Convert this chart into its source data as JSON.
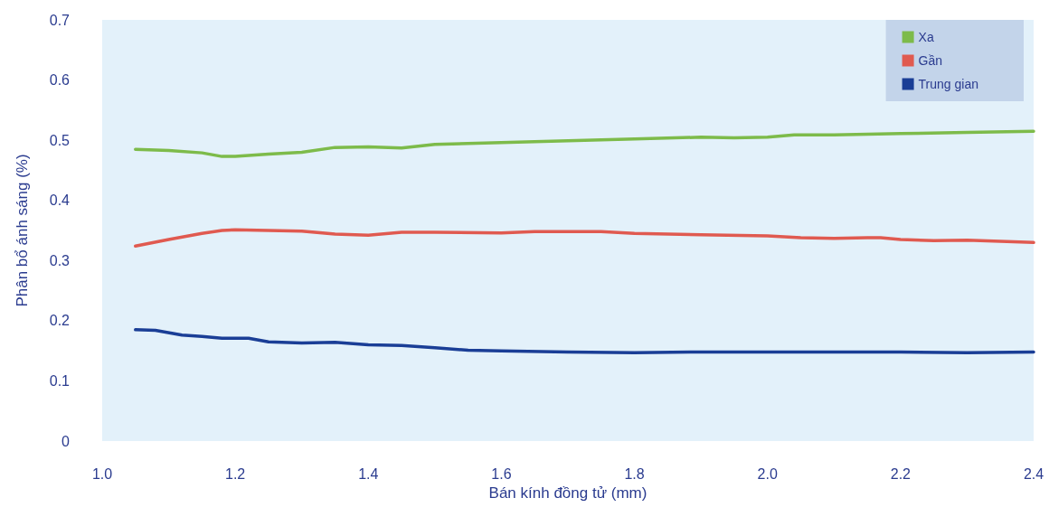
{
  "chart_data": {
    "type": "line",
    "xlabel": "Bán kính đồng tử (mm)",
    "ylabel": "Phân bổ ánh sáng (%)",
    "xlim": [
      1.0,
      2.4
    ],
    "xticks": [
      {
        "value": 1.0,
        "label": "1.0"
      },
      1.2,
      1.4,
      1.6,
      1.8,
      {
        "value": 2.0,
        "label": "2.0"
      },
      2.2,
      2.4
    ],
    "ylim": [
      0,
      0.7
    ],
    "yticks": [
      0,
      0.1,
      0.2,
      0.3,
      0.4,
      0.5,
      0.6,
      0.7
    ],
    "grid": false,
    "legend": "top right",
    "marker": "none",
    "line_style": "solid",
    "series": [
      {
        "name": "Xa",
        "color": "#7dbb4a",
        "x": [
          1.05,
          1.1,
          1.15,
          1.18,
          1.2,
          1.25,
          1.3,
          1.35,
          1.4,
          1.45,
          1.5,
          1.6,
          1.7,
          1.8,
          1.9,
          1.95,
          2.0,
          2.04,
          2.1,
          2.2,
          2.3,
          2.4
        ],
        "values": [
          0.485,
          0.483,
          0.479,
          0.473,
          0.473,
          0.477,
          0.48,
          0.488,
          0.489,
          0.487,
          0.493,
          0.496,
          0.499,
          0.502,
          0.505,
          0.504,
          0.505,
          0.509,
          0.509,
          0.511,
          0.513,
          0.515
        ]
      },
      {
        "name": "Gần",
        "color": "#e05a50",
        "x": [
          1.05,
          1.1,
          1.15,
          1.18,
          1.2,
          1.3,
          1.35,
          1.4,
          1.45,
          1.5,
          1.6,
          1.65,
          1.7,
          1.75,
          1.8,
          1.9,
          2.0,
          2.05,
          2.1,
          2.15,
          2.17,
          2.2,
          2.25,
          2.3,
          2.4
        ],
        "values": [
          0.324,
          0.335,
          0.345,
          0.35,
          0.351,
          0.349,
          0.344,
          0.342,
          0.347,
          0.347,
          0.346,
          0.348,
          0.348,
          0.348,
          0.345,
          0.343,
          0.341,
          0.338,
          0.337,
          0.338,
          0.338,
          0.335,
          0.333,
          0.334,
          0.33
        ]
      },
      {
        "name": "Trung gian",
        "color": "#1a3e96",
        "x": [
          1.05,
          1.08,
          1.12,
          1.15,
          1.18,
          1.22,
          1.25,
          1.3,
          1.35,
          1.4,
          1.45,
          1.5,
          1.55,
          1.6,
          1.7,
          1.8,
          1.9,
          2.0,
          2.1,
          2.2,
          2.3,
          2.4
        ],
        "values": [
          0.185,
          0.184,
          0.176,
          0.174,
          0.171,
          0.171,
          0.165,
          0.163,
          0.164,
          0.16,
          0.159,
          0.155,
          0.151,
          0.15,
          0.148,
          0.147,
          0.148,
          0.148,
          0.148,
          0.148,
          0.147,
          0.148
        ]
      }
    ]
  }
}
